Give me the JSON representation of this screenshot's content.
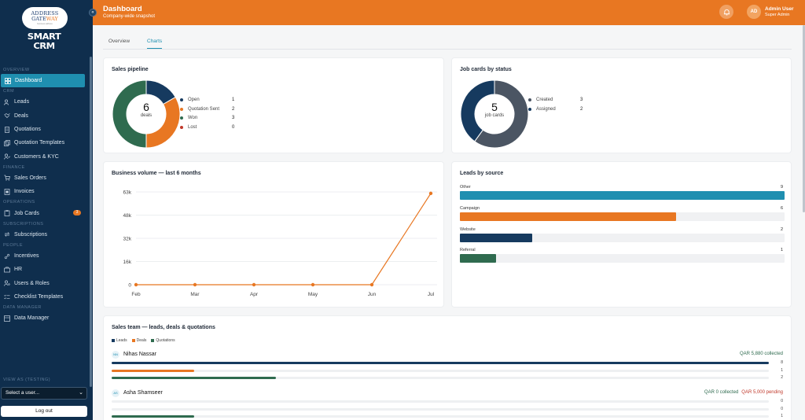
{
  "brand": {
    "logo_line1": "ADDRESS",
    "logo_line2a": "GATE",
    "logo_line2b": "WAY",
    "logo_line3": "business address",
    "app_line1": "SMART",
    "app_line2": "CRM"
  },
  "sidebar": {
    "sections": {
      "overview": "OVERVIEW",
      "crm": "CRM",
      "finance": "FINANCE",
      "operations": "OPERATIONS",
      "subscriptions": "SUBSCRIPTIONS",
      "people": "PEOPLE",
      "data_manager": "DATA MANAGER"
    },
    "items": {
      "dashboard": "Dashboard",
      "leads": "Leads",
      "deals": "Deals",
      "quotations": "Quotations",
      "quotation_templates": "Quotation Templates",
      "customers": "Customers & KYC",
      "sales_orders": "Sales Orders",
      "invoices": "Invoices",
      "job_cards": "Job Cards",
      "job_cards_badge": "3",
      "subscriptions": "Subscriptions",
      "incentives": "Incentives",
      "hr": "HR",
      "users_roles": "Users & Roles",
      "checklist_templates": "Checklist Templates",
      "data_manager": "Data Manager"
    },
    "view_as_label": "VIEW AS (TESTING)",
    "select_user": "Select a user...",
    "logout": "Log out"
  },
  "header": {
    "title": "Dashboard",
    "subtitle": "Company-wide snapshot",
    "avatar": "AD",
    "user_name": "Admin User",
    "user_role": "Super Admin"
  },
  "tabs": {
    "overview": "Overview",
    "charts": "Charts"
  },
  "sales_pipeline": {
    "title": "Sales pipeline",
    "total": "6",
    "total_label": "deals",
    "legend": [
      {
        "label": "Open",
        "value": 1,
        "color": "#163a5f"
      },
      {
        "label": "Quotation Sent",
        "value": 2,
        "color": "#e87722"
      },
      {
        "label": "Won",
        "value": 3,
        "color": "#2f6b4f"
      },
      {
        "label": "Lost",
        "value": 0,
        "color": "#c0392b"
      }
    ]
  },
  "job_cards": {
    "title": "Job cards by status",
    "total": "5",
    "total_label": "job cards",
    "legend": [
      {
        "label": "Created",
        "value": 3,
        "color": "#4b5563"
      },
      {
        "label": "Assigned",
        "value": 2,
        "color": "#163a5f"
      }
    ]
  },
  "chart_data": {
    "type": "line",
    "title": "Business volume — last 6 months",
    "categories": [
      "Feb",
      "Mar",
      "Apr",
      "May",
      "Jun",
      "Jul"
    ],
    "y_ticks": [
      "63k",
      "48k",
      "32k",
      "16k",
      "0"
    ],
    "ylim": [
      0,
      63000
    ],
    "values": [
      0,
      0,
      0,
      0,
      0,
      62000
    ],
    "color": "#e87722",
    "grid": true
  },
  "leads_by_source": {
    "title": "Leads by source",
    "max": 9,
    "items": [
      {
        "label": "Other",
        "value": 9,
        "color": "#1f8fb0"
      },
      {
        "label": "Campaign",
        "value": 6,
        "color": "#e87722"
      },
      {
        "label": "Website",
        "value": 2,
        "color": "#163a5f"
      },
      {
        "label": "Referral",
        "value": 1,
        "color": "#2f6b4f"
      }
    ]
  },
  "sales_team": {
    "title": "Sales team — leads, deals & quotations",
    "legend": [
      {
        "label": "Leads",
        "color": "#163a5f"
      },
      {
        "label": "Deals",
        "color": "#e87722"
      },
      {
        "label": "Quotations",
        "color": "#2f6b4f"
      }
    ],
    "members": [
      {
        "initials": "NN",
        "name": "Nihas Nassar",
        "collected": "QAR 5,880 collected",
        "pending": "",
        "leads": 8,
        "deals": 1,
        "quotations": 2
      },
      {
        "initials": "AS",
        "name": "Asha Shamseer",
        "collected": "QAR 0 collected",
        "pending": "QAR 5,000 pending",
        "leads": 0,
        "deals": 0,
        "quotations": 1
      }
    ],
    "max": 8
  }
}
